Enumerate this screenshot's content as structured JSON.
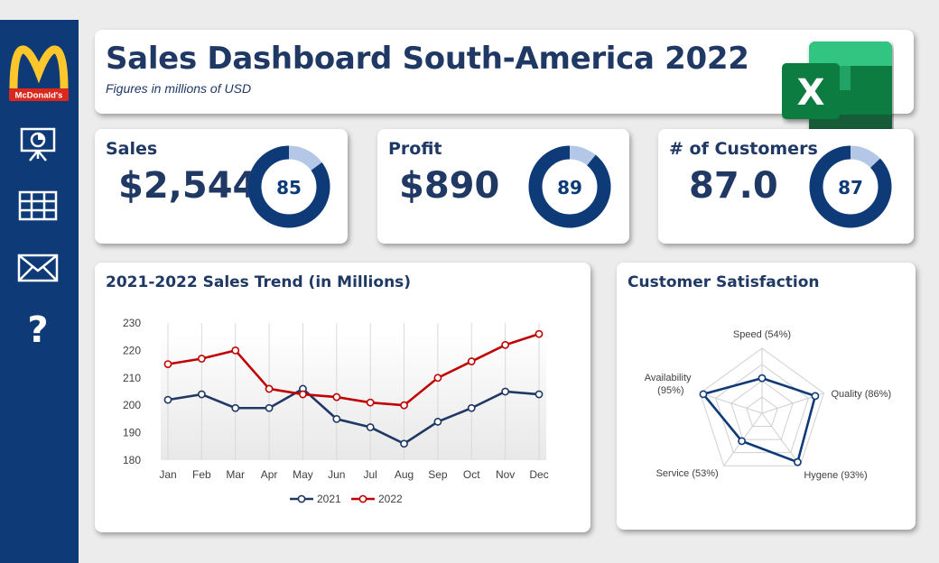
{
  "sidebar": {
    "logo_text": "McDonald's",
    "icons": [
      "presentation-chart-icon",
      "table-grid-icon",
      "mail-icon",
      "help-icon"
    ],
    "help_glyph": "?"
  },
  "header": {
    "title": "Sales Dashboard South-America 2022",
    "subtitle": "Figures in millions of USD"
  },
  "kpis": [
    {
      "label": "Sales",
      "value": "$2,544",
      "ring_value": 85,
      "ring_label": "85"
    },
    {
      "label": "Profit",
      "value": "$890",
      "ring_value": 89,
      "ring_label": "89"
    },
    {
      "label": "# of Customers",
      "value": "87.0",
      "ring_value": 87,
      "ring_label": "87"
    }
  ],
  "colors": {
    "navy": "#0e3a78",
    "ring_track": "#b4c7e7",
    "series_2021": "#1f3864",
    "series_2022": "#c00000",
    "excel_green": "#107c41"
  },
  "excel_letter": "X",
  "chart_data": [
    {
      "type": "line",
      "title": "2021-2022 Sales Trend (in Millions)",
      "categories": [
        "Jan",
        "Feb",
        "Mar",
        "Apr",
        "May",
        "Jun",
        "Jul",
        "Aug",
        "Sep",
        "Oct",
        "Nov",
        "Dec"
      ],
      "series": [
        {
          "name": "2021",
          "values": [
            202,
            204,
            199,
            199,
            206,
            195,
            192,
            186,
            194,
            199,
            205,
            204
          ]
        },
        {
          "name": "2022",
          "values": [
            215,
            217,
            220,
            206,
            204,
            203,
            201,
            200,
            210,
            216,
            222,
            226
          ]
        }
      ],
      "ylim": [
        180,
        230
      ],
      "yticks": [
        "180",
        "190",
        "200",
        "210",
        "220",
        "230"
      ],
      "grid": "vertical",
      "legend": "bottom"
    },
    {
      "type": "radar",
      "title": "Customer Satisfaction",
      "categories": [
        "Speed (54%)",
        "Quality (86%)",
        "Hygene (93%)",
        "Service (53%)",
        "Availability (95%)"
      ],
      "values": [
        54,
        86,
        93,
        53,
        95
      ],
      "rmax": 100
    }
  ]
}
